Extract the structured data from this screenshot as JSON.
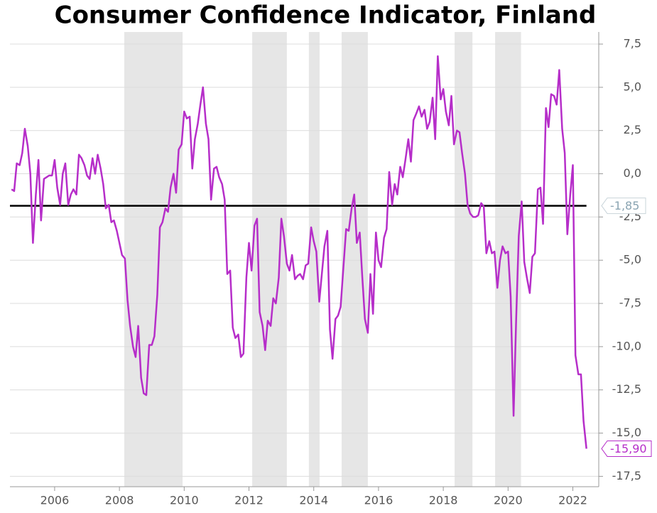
{
  "chart_data": {
    "type": "line",
    "title": "Consumer Confidence Indicator, Finland",
    "color": "#b62ec9",
    "x": [
      2004.67,
      2004.75,
      2004.83,
      2004.92,
      2005.0,
      2005.08,
      2005.17,
      2005.25,
      2005.33,
      2005.42,
      2005.5,
      2005.58,
      2005.67,
      2005.75,
      2005.83,
      2005.92,
      2006.0,
      2006.08,
      2006.17,
      2006.25,
      2006.33,
      2006.42,
      2006.5,
      2006.58,
      2006.67,
      2006.75,
      2006.83,
      2006.92,
      2007.0,
      2007.08,
      2007.17,
      2007.25,
      2007.33,
      2007.42,
      2007.5,
      2007.58,
      2007.67,
      2007.75,
      2007.83,
      2007.92,
      2008.0,
      2008.08,
      2008.17,
      2008.25,
      2008.33,
      2008.42,
      2008.5,
      2008.58,
      2008.67,
      2008.75,
      2008.83,
      2008.92,
      2009.0,
      2009.08,
      2009.17,
      2009.25,
      2009.33,
      2009.42,
      2009.5,
      2009.58,
      2009.67,
      2009.75,
      2009.83,
      2009.92,
      2010.0,
      2010.08,
      2010.17,
      2010.25,
      2010.33,
      2010.42,
      2010.5,
      2010.58,
      2010.67,
      2010.75,
      2010.83,
      2010.92,
      2011.0,
      2011.08,
      2011.17,
      2011.25,
      2011.33,
      2011.42,
      2011.5,
      2011.58,
      2011.67,
      2011.75,
      2011.83,
      2011.92,
      2012.0,
      2012.08,
      2012.17,
      2012.25,
      2012.33,
      2012.42,
      2012.5,
      2012.58,
      2012.67,
      2012.75,
      2012.83,
      2012.92,
      2013.0,
      2013.08,
      2013.17,
      2013.25,
      2013.33,
      2013.42,
      2013.5,
      2013.58,
      2013.67,
      2013.75,
      2013.83,
      2013.92,
      2014.0,
      2014.08,
      2014.17,
      2014.25,
      2014.33,
      2014.42,
      2014.5,
      2014.58,
      2014.67,
      2014.75,
      2014.83,
      2014.92,
      2015.0,
      2015.08,
      2015.17,
      2015.25,
      2015.33,
      2015.42,
      2015.5,
      2015.58,
      2015.67,
      2015.75,
      2015.83,
      2015.92,
      2016.0,
      2016.08,
      2016.17,
      2016.25,
      2016.33,
      2016.42,
      2016.5,
      2016.58,
      2016.67,
      2016.75,
      2016.83,
      2016.92,
      2017.0,
      2017.08,
      2017.17,
      2017.25,
      2017.33,
      2017.42,
      2017.5,
      2017.58,
      2017.67,
      2017.75,
      2017.83,
      2017.92,
      2018.0,
      2018.08,
      2018.17,
      2018.25,
      2018.33,
      2018.42,
      2018.5,
      2018.58,
      2018.67,
      2018.75,
      2018.83,
      2018.92,
      2019.0,
      2019.08,
      2019.17,
      2019.25,
      2019.33,
      2019.42,
      2019.5,
      2019.58,
      2019.67,
      2019.75,
      2019.83,
      2019.92,
      2020.0,
      2020.08,
      2020.17,
      2020.25,
      2020.33,
      2020.42,
      2020.5,
      2020.58,
      2020.67,
      2020.75,
      2020.83,
      2020.92,
      2021.0,
      2021.08,
      2021.17,
      2021.25,
      2021.33,
      2021.42,
      2021.5,
      2021.58,
      2021.67,
      2021.75,
      2021.83,
      2021.92,
      2022.0,
      2022.08,
      2022.17,
      2022.25,
      2022.33,
      2022.42
    ],
    "values": [
      -0.9,
      -1.0,
      0.6,
      0.5,
      1.2,
      2.6,
      1.6,
      0.0,
      -4.0,
      -1.2,
      0.8,
      -2.7,
      -0.3,
      -0.2,
      -0.1,
      -0.1,
      0.8,
      -0.8,
      -1.8,
      0.0,
      0.6,
      -1.8,
      -1.2,
      -0.9,
      -1.2,
      1.1,
      0.9,
      0.5,
      -0.1,
      -0.3,
      0.9,
      0.0,
      1.1,
      0.3,
      -0.6,
      -2.0,
      -1.8,
      -2.8,
      -2.7,
      -3.3,
      -4.0,
      -4.7,
      -4.9,
      -7.3,
      -8.8,
      -10.0,
      -10.6,
      -8.8,
      -11.8,
      -12.7,
      -12.8,
      -9.9,
      -9.9,
      -9.4,
      -7.0,
      -3.1,
      -2.8,
      -2.0,
      -2.2,
      -0.8,
      0.0,
      -1.1,
      1.4,
      1.7,
      3.6,
      3.2,
      3.3,
      0.3,
      2.0,
      2.9,
      4.0,
      5.0,
      2.9,
      2.0,
      -1.5,
      0.3,
      0.4,
      -0.2,
      -0.6,
      -1.5,
      -5.8,
      -5.6,
      -8.9,
      -9.5,
      -9.3,
      -10.6,
      -10.4,
      -6.0,
      -4.0,
      -5.6,
      -3.0,
      -2.6,
      -8.0,
      -8.8,
      -10.2,
      -8.5,
      -8.8,
      -7.2,
      -7.5,
      -6.0,
      -2.6,
      -3.6,
      -5.2,
      -5.6,
      -4.7,
      -6.1,
      -5.9,
      -5.8,
      -6.1,
      -5.3,
      -5.2,
      -3.1,
      -3.9,
      -4.5,
      -7.4,
      -5.8,
      -4.2,
      -3.3,
      -9.0,
      -10.7,
      -8.4,
      -8.2,
      -7.7,
      -5.3,
      -3.2,
      -3.3,
      -2.0,
      -1.2,
      -4.0,
      -3.4,
      -6.0,
      -8.4,
      -9.2,
      -5.8,
      -8.1,
      -3.4,
      -5.0,
      -5.4,
      -3.7,
      -3.2,
      0.1,
      -1.8,
      -0.6,
      -1.2,
      0.4,
      -0.2,
      0.8,
      2.0,
      0.7,
      3.1,
      3.5,
      3.9,
      3.3,
      3.7,
      2.6,
      3.0,
      4.4,
      2.0,
      6.8,
      4.3,
      4.9,
      3.6,
      2.8,
      4.5,
      1.7,
      2.5,
      2.4,
      1.2,
      0.0,
      -1.8,
      -2.3,
      -2.5,
      -2.5,
      -2.4,
      -1.7,
      -1.9,
      -4.6,
      -3.9,
      -4.6,
      -4.5,
      -6.6,
      -5.0,
      -4.2,
      -4.6,
      -4.5,
      -7.1,
      -14.0,
      -8.4,
      -3.6,
      -1.6,
      -5.1,
      -6.0,
      -6.9,
      -4.8,
      -4.6,
      -0.9,
      -0.8,
      -2.9,
      3.8,
      2.7,
      4.6,
      4.5,
      4.0,
      6.0,
      2.6,
      1.2,
      -3.5,
      -1.2,
      0.5,
      -10.5,
      -11.6,
      -11.6,
      -14.3,
      -15.9
    ],
    "end_label": "-15,90",
    "reference_line": {
      "value": -1.85,
      "label": "-1,85",
      "color": "#000000"
    },
    "shaded_periods": [
      [
        2008.15,
        2009.95
      ],
      [
        2012.1,
        2013.17
      ],
      [
        2013.85,
        2014.18
      ],
      [
        2014.86,
        2015.67
      ],
      [
        2018.35,
        2018.9
      ],
      [
        2019.6,
        2020.4
      ]
    ],
    "shade_color": "#e6e6e6",
    "xlim": [
      2004.62,
      2022.8
    ],
    "ylim": [
      -18.1,
      8.2
    ],
    "xticks": [
      2006,
      2008,
      2010,
      2012,
      2014,
      2016,
      2018,
      2020,
      2022
    ],
    "yticks": [
      {
        "value": 7.5,
        "label": "7,5"
      },
      {
        "value": 5,
        "label": "5,0"
      },
      {
        "value": 2.5,
        "label": "2,5"
      },
      {
        "value": 0,
        "label": "0,0"
      },
      {
        "value": -2.5,
        "label": "-2,5"
      },
      {
        "value": -5,
        "label": "-5,0"
      },
      {
        "value": -7.5,
        "label": "-7,5"
      },
      {
        "value": -10,
        "label": "-10,0"
      },
      {
        "value": -12.5,
        "label": "-12,5"
      },
      {
        "value": -15,
        "label": "-15,0"
      },
      {
        "value": -17.5,
        "label": "-17,5"
      }
    ],
    "grid": true
  }
}
